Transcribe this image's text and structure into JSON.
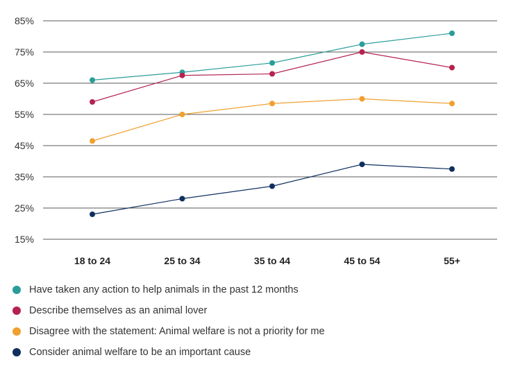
{
  "chart_data": {
    "type": "line",
    "categories": [
      "18 to 24",
      "25 to 34",
      "35 to 44",
      "45 to 54",
      "55+"
    ],
    "y_ticks": [
      "85%",
      "75%",
      "65%",
      "55%",
      "45%",
      "35%",
      "25%",
      "15%"
    ],
    "ylim": [
      15,
      85
    ],
    "grid": true,
    "legend_position": "bottom",
    "series": [
      {
        "name": "Have taken any action to help animals in the past 12 months",
        "color": "#2a9d9a",
        "values": [
          66,
          68.5,
          71.5,
          77.5,
          81
        ]
      },
      {
        "name": "Describe themselves as an animal lover",
        "color": "#b5224f",
        "values": [
          59,
          67.5,
          68,
          75,
          70
        ]
      },
      {
        "name": "Disagree with the statement: Animal welfare is not a priority for me",
        "color": "#f0a030",
        "values": [
          46.5,
          55,
          58.5,
          60,
          58.5
        ]
      },
      {
        "name": "Consider animal welfare to be an important cause",
        "color": "#0f2f5e",
        "values": [
          23,
          28,
          32,
          39,
          37.5
        ]
      }
    ]
  }
}
